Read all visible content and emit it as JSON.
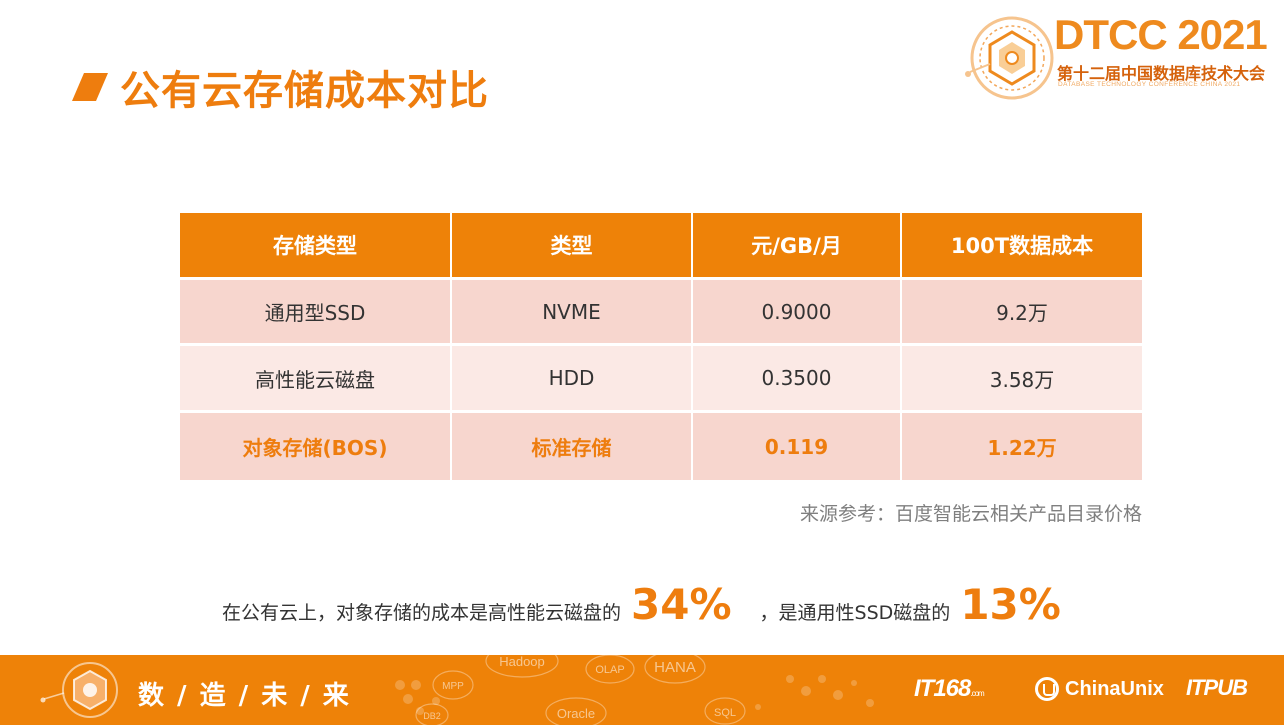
{
  "slide": {
    "title": "公有云存储成本对比",
    "logo": {
      "name": "DTCC 2021",
      "subtitle": "第十二届中国数据库技术大会",
      "english": "DATABASE TECHNOLOGY CONFERENCE CHINA 2021"
    },
    "table": {
      "headers": [
        "存储类型",
        "类型",
        "元/GB/月",
        "100T数据成本"
      ],
      "rows": [
        [
          "通用型SSD",
          "NVME",
          "0.9000",
          "9.2万"
        ],
        [
          "高性能云磁盘",
          "HDD",
          "0.3500",
          "3.58万"
        ],
        [
          "对象存储(BOS)",
          "标准存储",
          "0.119",
          "1.22万"
        ]
      ]
    },
    "source": "来源参考：百度智能云相关产品目录价格",
    "conclusion": {
      "part1": "在公有云上，对象存储的成本是高性能云磁盘的",
      "value1": "34%",
      "part2": "，是通用性SSD磁盘的",
      "value2": "13%"
    },
    "footer": {
      "slogan": "数 / 造 / 未 / 来",
      "logos": {
        "it168": "IT168",
        "it168_suffix": ".com",
        "chinaunix": "ChinaUnix",
        "itpub": "ITPUB"
      },
      "deco_words": [
        "Hadoop",
        "OLAP",
        "HANA",
        "MPP",
        "DB2",
        "Oracle",
        "SQL"
      ]
    },
    "colors": {
      "accent": "#ee7d0e",
      "header_bg": "#ee8208",
      "row_dark": "#f7d6ce",
      "row_light": "#fbe9e5"
    }
  }
}
